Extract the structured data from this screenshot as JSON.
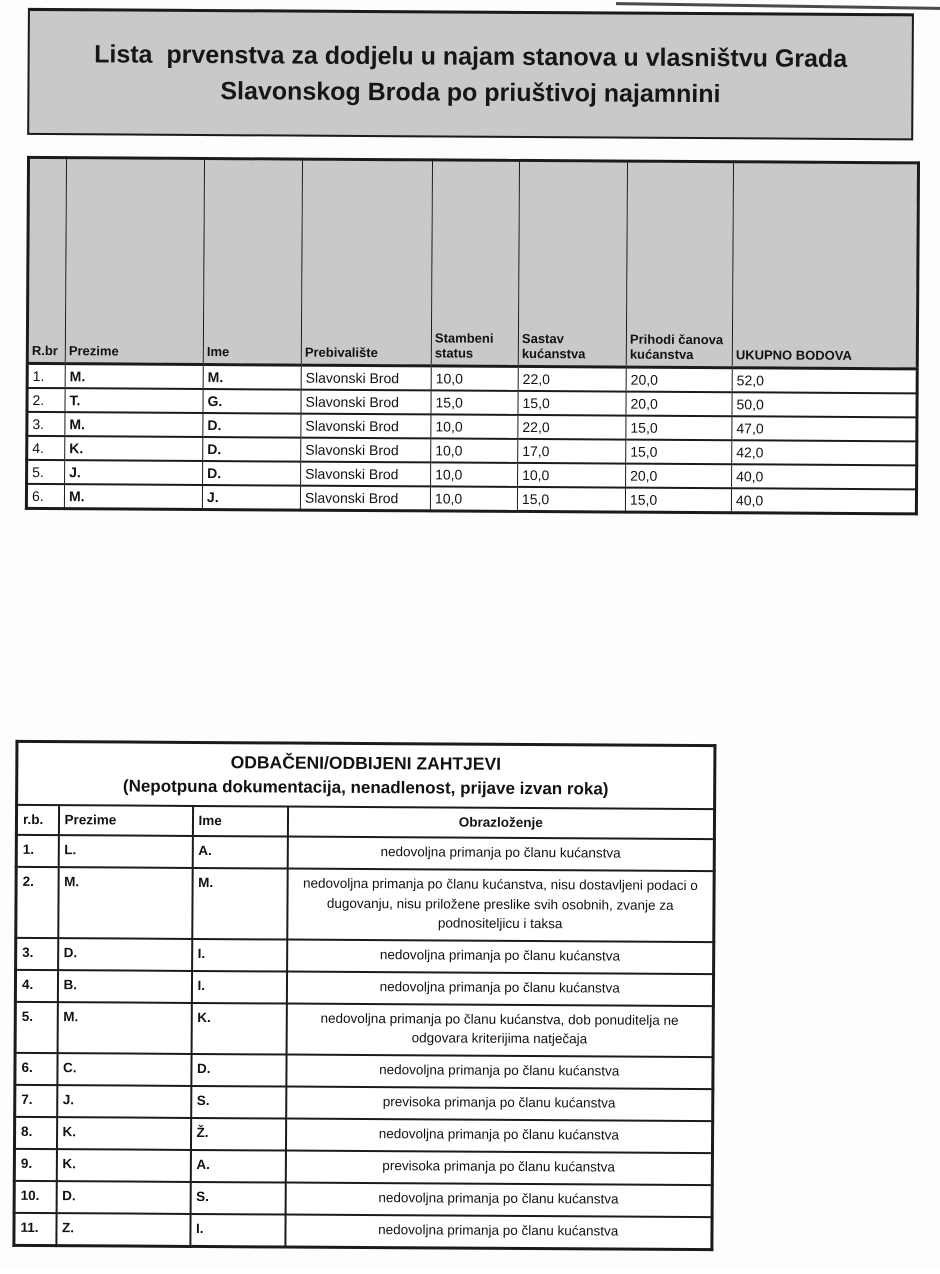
{
  "header": {
    "title_line1": "Lista  prvenstva za dodjelu u najam stanova u vlasništvu Grada",
    "title_line2": "Slavonskog Broda po priuštivoj najamnini"
  },
  "priority_table": {
    "columns": [
      "R.br",
      "Prezime",
      "Ime",
      "Prebivalište",
      "Stambeni status",
      "Sastav kućanstva",
      "Prihodi čanova kućanstva",
      "UKUPNO BODOVA"
    ],
    "rows": [
      [
        "1.",
        "M.",
        "M.",
        "Slavonski Brod",
        "10,0",
        "22,0",
        "20,0",
        "52,0"
      ],
      [
        "2.",
        "T.",
        "G.",
        "Slavonski Brod",
        "15,0",
        "15,0",
        "20,0",
        "50,0"
      ],
      [
        "3.",
        "M.",
        "D.",
        "Slavonski Brod",
        "10,0",
        "22,0",
        "15,0",
        "47,0"
      ],
      [
        "4.",
        "K.",
        "D.",
        "Slavonski Brod",
        "10,0",
        "17,0",
        "15,0",
        "42,0"
      ],
      [
        "5.",
        "J.",
        "D.",
        "Slavonski Brod",
        "10,0",
        "10,0",
        "20,0",
        "40,0"
      ],
      [
        "6.",
        "M.",
        "J.",
        "Slavonski Brod",
        "10,0",
        "15,0",
        "15,0",
        "40,0"
      ]
    ]
  },
  "rejected_table": {
    "title": "ODBAČENI/ODBIJENI ZAHTJEVI",
    "subtitle": "(Nepotpuna dokumentacija, nenadlenost, prijave izvan roka)",
    "columns": [
      "r.b.",
      "Prezime",
      "Ime",
      "Obrazloženje"
    ],
    "rows": [
      [
        "1.",
        "L.",
        "A.",
        "nedovoljna primanja po članu kućanstva"
      ],
      [
        "2.",
        "M.",
        "M.",
        "nedovoljna primanja po članu kućanstva, nisu dostavljeni podaci o dugovanju, nisu priložene preslike svih osobnih, zvanje za podnositeljicu i taksa"
      ],
      [
        "3.",
        "D.",
        "I.",
        "nedovoljna primanja po članu kućanstva"
      ],
      [
        "4.",
        "B.",
        "I.",
        "nedovoljna primanja po članu kućanstva"
      ],
      [
        "5.",
        "M.",
        "K.",
        "nedovoljna primanja po članu kućanstva, dob ponuditelja ne odgovara kriterijima natječaja"
      ],
      [
        "6.",
        "C.",
        "D.",
        "nedovoljna primanja po članu kućanstva"
      ],
      [
        "7.",
        "J.",
        "S.",
        "previsoka primanja po članu kućanstva"
      ],
      [
        "8.",
        "K.",
        "Ž.",
        "nedovoljna primanja po članu kućanstva"
      ],
      [
        "9.",
        "K.",
        "A.",
        "previsoka primanja po članu kućanstva"
      ],
      [
        "10.",
        "D.",
        "S.",
        "nedovoljna primanja po članu kućanstva"
      ],
      [
        "11.",
        "Z.",
        "I.",
        "nedovoljna primanja po članu kućanstva"
      ]
    ]
  },
  "colors": {
    "header_gray": "#c9c9c9",
    "border_black": "#1b1b1b",
    "paper_white": "#fdfdfc"
  }
}
